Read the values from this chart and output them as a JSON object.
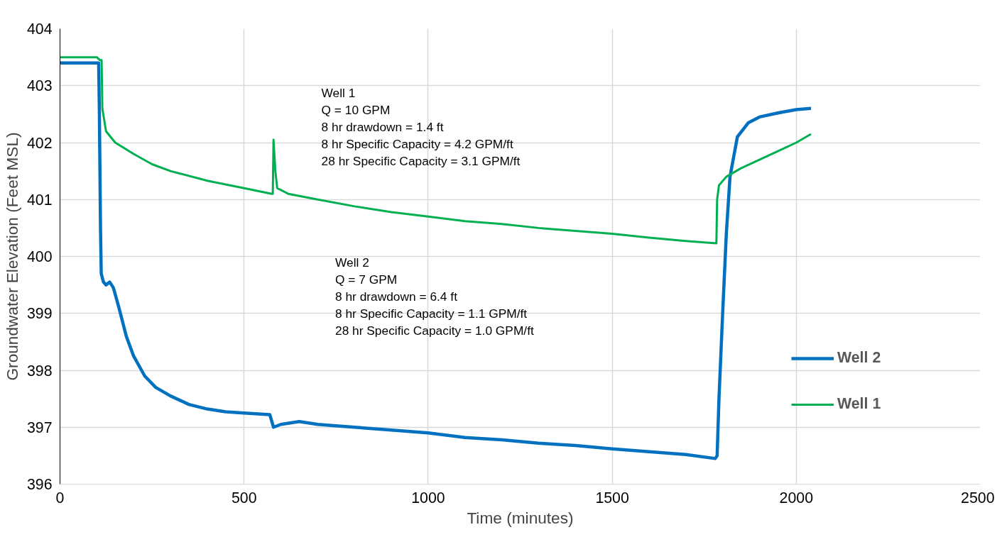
{
  "chart_data": {
    "type": "line",
    "xlabel": "Time (minutes)",
    "ylabel": "Groundwater Elevation (Feet MSL)",
    "xlim": [
      0,
      2500
    ],
    "xticks": [
      0,
      500,
      1000,
      1500,
      2000,
      2500
    ],
    "ylim": [
      396,
      404
    ],
    "yticks": [
      396,
      397,
      398,
      399,
      400,
      401,
      402,
      403,
      404
    ],
    "grid": true,
    "legend": "right",
    "marker": "none",
    "line_style": "solid",
    "annotations": [
      "Well 1\nQ = 10 GPM\n8 hr drawdown = 1.4 ft\n8 hr Specific Capacity = 4.2 GPM/ft\n28 hr Specific Capacity = 3.1 GPM/ft",
      "Well 2\nQ = 7 GPM\n8 hr drawdown = 6.4 ft\n8 hr Specific Capacity = 1.1 GPM/ft\n28 hr Specific Capacity = 1.0 GPM/ft"
    ],
    "series": [
      {
        "name": "Well 2",
        "color": "#0070c0",
        "x": [
          0,
          105,
          107,
          110,
          112,
          118,
          125,
          135,
          145,
          160,
          180,
          200,
          230,
          260,
          300,
          350,
          400,
          450,
          500,
          570,
          580,
          600,
          650,
          700,
          800,
          900,
          1000,
          1100,
          1200,
          1300,
          1400,
          1500,
          1600,
          1700,
          1780,
          1785,
          1790,
          1800,
          1810,
          1820,
          1840,
          1870,
          1900,
          1950,
          2000,
          2040
        ],
        "values": [
          403.4,
          403.4,
          402.5,
          400.5,
          399.7,
          399.55,
          399.5,
          399.55,
          399.45,
          399.1,
          398.6,
          398.25,
          397.9,
          397.7,
          397.55,
          397.4,
          397.32,
          397.27,
          397.25,
          397.22,
          397.0,
          397.05,
          397.1,
          397.05,
          397.0,
          396.95,
          396.9,
          396.82,
          396.78,
          396.72,
          396.68,
          396.62,
          396.57,
          396.52,
          396.45,
          396.5,
          397.5,
          399.0,
          400.4,
          401.4,
          402.1,
          402.35,
          402.45,
          402.52,
          402.58,
          402.6
        ]
      },
      {
        "name": "Well 1",
        "color": "#00b050",
        "x": [
          0,
          100,
          108,
          113,
          115,
          125,
          150,
          200,
          250,
          300,
          400,
          500,
          575,
          578,
          580,
          585,
          590,
          620,
          700,
          800,
          900,
          1000,
          1100,
          1200,
          1300,
          1400,
          1500,
          1600,
          1700,
          1783,
          1785,
          1790,
          1810,
          1850,
          1900,
          1950,
          2000,
          2040
        ],
        "values": [
          403.5,
          403.5,
          403.45,
          403.45,
          402.6,
          402.2,
          402.0,
          401.8,
          401.62,
          401.5,
          401.33,
          401.2,
          401.1,
          401.1,
          402.05,
          401.5,
          401.2,
          401.1,
          401.0,
          400.88,
          400.78,
          400.7,
          400.62,
          400.57,
          400.5,
          400.45,
          400.4,
          400.33,
          400.27,
          400.23,
          401.0,
          401.25,
          401.4,
          401.55,
          401.7,
          401.85,
          402.0,
          402.15
        ]
      }
    ]
  }
}
